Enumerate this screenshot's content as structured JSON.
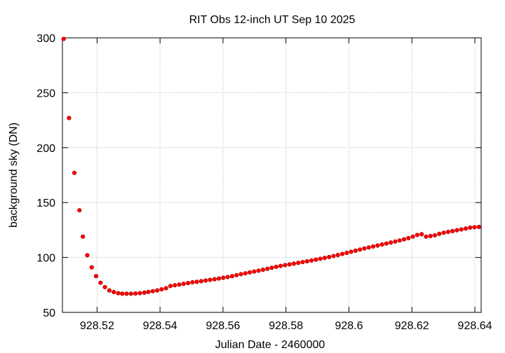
{
  "chart_data": {
    "type": "scatter",
    "title": "RIT Obs 12-inch UT Sep 10 2025",
    "xlabel": "Julian Date - 2460000",
    "ylabel": "background sky (DN)",
    "xlim": [
      928.509,
      928.642
    ],
    "ylim": [
      50,
      300
    ],
    "xticks": [
      928.52,
      928.54,
      928.56,
      928.58,
      928.6,
      928.62,
      928.64
    ],
    "xtick_labels": [
      "928.52",
      "928.54",
      "928.56",
      "928.58",
      "928.6",
      "928.62",
      "928.64"
    ],
    "yticks": [
      50,
      100,
      150,
      200,
      250,
      300
    ],
    "ytick_labels": [
      "50",
      "100",
      "150",
      "200",
      "250",
      "300"
    ],
    "grid": true,
    "marker_color": "#ff0000",
    "series": [
      {
        "x": [
          928.5094,
          928.5111,
          928.5128,
          928.5144,
          928.5155,
          928.5169,
          928.5183,
          928.5197,
          928.5211,
          928.5225,
          928.5239,
          928.5253,
          928.5267,
          928.528,
          928.5294,
          928.5308,
          928.5322,
          928.5336,
          928.535,
          928.5363,
          928.5377,
          928.5391,
          928.5405,
          928.5419,
          928.5433,
          928.5447,
          928.5461,
          928.5475,
          928.5489,
          928.5503,
          928.5517,
          928.5531,
          928.5545,
          928.5559,
          928.5573,
          928.5587,
          928.5601,
          928.5615,
          928.5629,
          928.5643,
          928.5657,
          928.5671,
          928.5685,
          928.5699,
          928.5713,
          928.5727,
          928.5741,
          928.5755,
          928.5769,
          928.5783,
          928.5797,
          928.5811,
          928.5825,
          928.5839,
          928.5853,
          928.5867,
          928.5881,
          928.5895,
          928.5909,
          928.5923,
          928.5937,
          928.5951,
          928.5965,
          928.5979,
          928.5993,
          928.6007,
          928.6021,
          928.6035,
          928.6049,
          928.6063,
          928.6077,
          928.6091,
          928.6105,
          928.6119,
          928.6133,
          928.6147,
          928.6161,
          928.6175,
          928.6189,
          928.6203,
          928.6217,
          928.6231,
          928.6245,
          928.6259,
          928.6273,
          928.6287,
          928.6301,
          928.6315,
          928.6329,
          928.6343,
          928.6357,
          928.6371,
          928.6385,
          928.6399,
          928.6413
        ],
        "y": [
          299,
          227,
          177,
          143,
          119,
          102,
          91,
          83,
          77,
          73,
          70,
          68.5,
          67.5,
          67,
          67,
          67,
          67.2,
          67.5,
          68,
          68.6,
          69.3,
          70,
          71,
          72,
          74,
          74.7,
          75.3,
          76,
          76.7,
          77.4,
          77.8,
          78.4,
          79,
          79.6,
          80.2,
          80.8,
          81.5,
          82.2,
          83,
          83.9,
          84.8,
          85.6,
          86.4,
          87.2,
          88,
          88.8,
          89.7,
          90.6,
          91.5,
          92.3,
          93,
          93.7,
          94.4,
          95.1,
          95.8,
          96.5,
          97.2,
          98,
          98.8,
          99.6,
          100.4,
          101.3,
          102.2,
          103.2,
          104.2,
          105.2,
          106.2,
          107.2,
          108.2,
          109.1,
          110,
          110.9,
          111.8,
          112.7,
          113.6,
          114.5,
          115.5,
          116.5,
          117.6,
          119,
          120.5,
          121.2,
          119,
          119.5,
          120.2,
          121.5,
          122.5,
          123.3,
          124,
          124.8,
          125.5,
          126.3,
          127.2,
          127.6,
          127.8
        ]
      }
    ]
  }
}
